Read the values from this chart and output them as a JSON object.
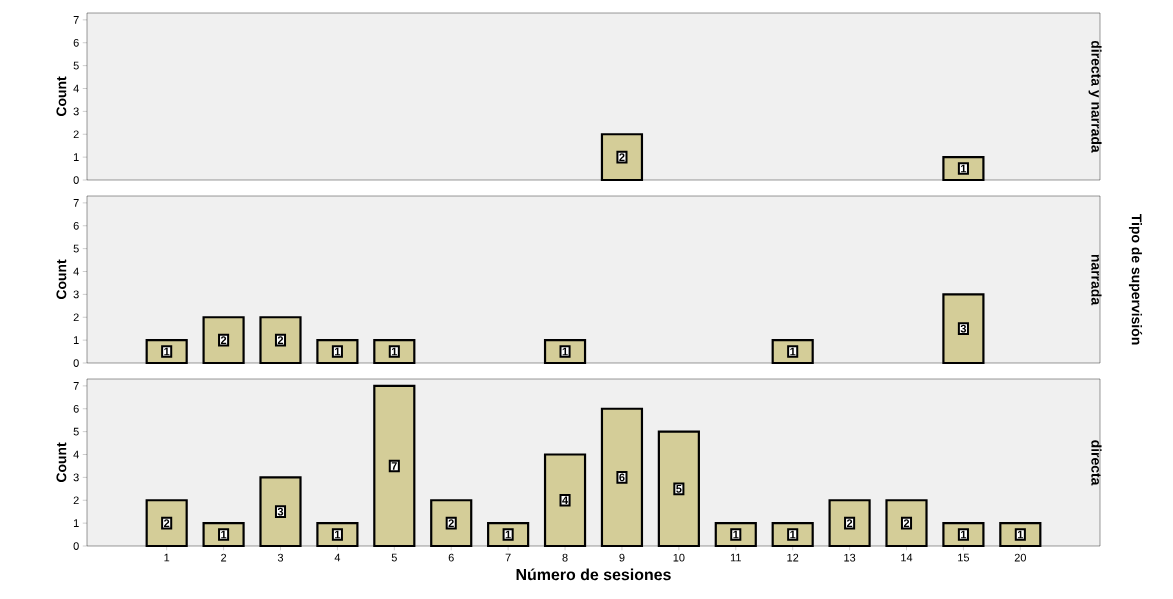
{
  "chart_data": [
    {
      "type": "bar",
      "title": "directa y narrada",
      "ylabel": "Count",
      "categories": [
        "1",
        "2",
        "3",
        "4",
        "5",
        "6",
        "7",
        "8",
        "9",
        "10",
        "11",
        "12",
        "13",
        "14",
        "15",
        "20"
      ],
      "values": [
        null,
        null,
        null,
        null,
        null,
        null,
        null,
        null,
        2,
        null,
        null,
        null,
        null,
        null,
        1,
        null
      ],
      "color": "#d4cd98",
      "ylim": [
        0,
        7.3
      ],
      "yticks": [
        0,
        1,
        2,
        3,
        4,
        5,
        6,
        7
      ],
      "data_labels": true,
      "tick_labels": "y"
    },
    {
      "type": "bar",
      "title": "narrada",
      "ylabel": "Count",
      "y2label": "Tipo de supervisión",
      "categories": [
        "1",
        "2",
        "3",
        "4",
        "5",
        "6",
        "7",
        "8",
        "9",
        "10",
        "11",
        "12",
        "13",
        "14",
        "15",
        "20"
      ],
      "values": [
        1,
        2,
        2,
        1,
        1,
        null,
        null,
        1,
        null,
        null,
        null,
        1,
        null,
        null,
        3,
        null
      ],
      "color": "#d4cd98",
      "ylim": [
        0,
        7.3
      ],
      "yticks": [
        0,
        1,
        2,
        3,
        4,
        5,
        6,
        7
      ],
      "data_labels": true,
      "tick_labels": "y"
    },
    {
      "type": "bar",
      "title": "directa",
      "ylabel": "Count",
      "xlabel": "Número de sesiones",
      "categories": [
        "1",
        "2",
        "3",
        "4",
        "5",
        "6",
        "7",
        "8",
        "9",
        "10",
        "11",
        "12",
        "13",
        "14",
        "15",
        "20"
      ],
      "values": [
        2,
        1,
        3,
        1,
        7,
        2,
        1,
        4,
        6,
        5,
        1,
        1,
        2,
        2,
        1,
        1
      ],
      "color": "#d4cd98",
      "ylim": [
        0,
        7.3
      ],
      "yticks": [
        0,
        1,
        2,
        3,
        4,
        5,
        6,
        7
      ],
      "data_labels": true
    }
  ]
}
